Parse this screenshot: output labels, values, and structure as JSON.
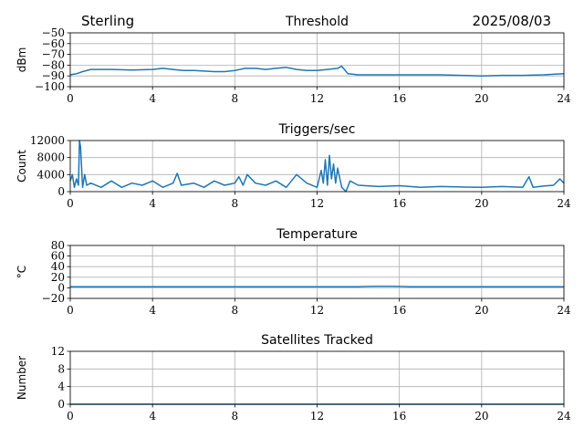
{
  "header": {
    "left": "Sterling",
    "right": "2025/08/03"
  },
  "colors": {
    "series": "#1f77b4",
    "grid": "#b0b0b0"
  },
  "chart_data": [
    {
      "type": "line",
      "title": "Threshold",
      "ylabel": "dBm",
      "xlim": [
        0,
        24
      ],
      "ylim": [
        -100,
        -50
      ],
      "xticks": [
        0,
        4,
        8,
        12,
        16,
        20,
        24
      ],
      "yticks": [
        -100,
        -90,
        -80,
        -70,
        -60,
        -50
      ],
      "ytick_labels": [
        "−100",
        "−90",
        "−80",
        "−70",
        "−60",
        "−50"
      ],
      "grid": true,
      "series": [
        {
          "x": [
            0,
            0.3,
            0.6,
            1,
            2,
            3,
            4,
            4.5,
            5,
            5.5,
            6,
            7,
            7.5,
            8,
            8.5,
            9,
            9.5,
            10,
            10.5,
            11,
            11.5,
            12,
            12.5,
            13,
            13.2,
            13.5,
            14,
            15,
            16,
            17,
            18,
            19,
            20,
            21,
            22,
            23,
            23.5,
            24
          ],
          "y": [
            -89,
            -88,
            -86,
            -84,
            -84,
            -84.5,
            -84,
            -83,
            -84,
            -85,
            -85,
            -86,
            -86,
            -85,
            -83,
            -83,
            -84,
            -83,
            -82,
            -84,
            -85,
            -85,
            -84,
            -83,
            -81,
            -88,
            -89,
            -89,
            -89,
            -89,
            -89,
            -89.5,
            -90,
            -89.5,
            -89.5,
            -89,
            -88.5,
            -88
          ]
        }
      ]
    },
    {
      "type": "line",
      "title": "Triggers/sec",
      "ylabel": "Count",
      "xlim": [
        0,
        24
      ],
      "ylim": [
        0,
        12000
      ],
      "xticks": [
        0,
        4,
        8,
        12,
        16,
        20,
        24
      ],
      "yticks": [
        0,
        4000,
        8000,
        12000
      ],
      "grid": true,
      "series": [
        {
          "x": [
            0,
            0.1,
            0.2,
            0.3,
            0.4,
            0.45,
            0.5,
            0.6,
            0.7,
            0.8,
            1,
            1.5,
            2,
            2.5,
            3,
            3.5,
            4,
            4.5,
            5,
            5.2,
            5.4,
            6,
            6.5,
            7,
            7.5,
            8,
            8.2,
            8.4,
            8.6,
            9,
            9.5,
            10,
            10.5,
            11,
            11.5,
            12,
            12.1,
            12.2,
            12.3,
            12.4,
            12.5,
            12.6,
            12.7,
            12.8,
            12.9,
            13,
            13.2,
            13.4,
            13.6,
            14,
            15,
            16,
            17,
            18,
            19,
            20,
            21,
            22,
            22.3,
            22.5,
            23,
            23.5,
            23.8,
            24
          ],
          "y": [
            2500,
            4000,
            1000,
            3000,
            1500,
            12000,
            10500,
            1000,
            4000,
            1500,
            2000,
            1000,
            2500,
            1000,
            2000,
            1500,
            2500,
            1000,
            2000,
            4300,
            1500,
            2000,
            1000,
            2500,
            1500,
            2000,
            3500,
            1500,
            4000,
            2000,
            1500,
            2500,
            1000,
            4000,
            2000,
            1000,
            3000,
            5000,
            2000,
            7500,
            1500,
            8500,
            3000,
            6500,
            2000,
            5500,
            1000,
            0,
            2500,
            1500,
            1200,
            1400,
            1000,
            1200,
            1100,
            1000,
            1200,
            1000,
            3500,
            1000,
            1300,
            1500,
            3000,
            2000
          ]
        }
      ]
    },
    {
      "type": "line",
      "title": "Temperature",
      "ylabel": "°C",
      "xlim": [
        0,
        24
      ],
      "ylim": [
        -20,
        80
      ],
      "xticks": [
        0,
        4,
        8,
        12,
        16,
        20,
        24
      ],
      "yticks": [
        -20,
        0,
        20,
        40,
        60,
        80
      ],
      "ytick_labels": [
        "−20",
        "0",
        "20",
        "40",
        "60",
        "80"
      ],
      "grid": true,
      "series": [
        {
          "x": [
            0,
            2,
            4,
            6,
            8,
            10,
            12,
            14,
            14.5,
            15,
            15.5,
            16,
            16.5,
            18,
            20,
            22,
            24
          ],
          "y": [
            2,
            2,
            2,
            2,
            2,
            2,
            2,
            2,
            2.5,
            3,
            3,
            2.5,
            2,
            2,
            2,
            2,
            2
          ]
        }
      ]
    },
    {
      "type": "line",
      "title": "Satellites Tracked",
      "ylabel": "Number",
      "xlim": [
        0,
        24
      ],
      "ylim": [
        0,
        12
      ],
      "xticks": [
        0,
        4,
        8,
        12,
        16,
        20,
        24
      ],
      "yticks": [
        0,
        4,
        8,
        12
      ],
      "grid": true,
      "series": [
        {
          "x": [
            0,
            24
          ],
          "y": [
            0,
            0
          ]
        }
      ]
    }
  ]
}
